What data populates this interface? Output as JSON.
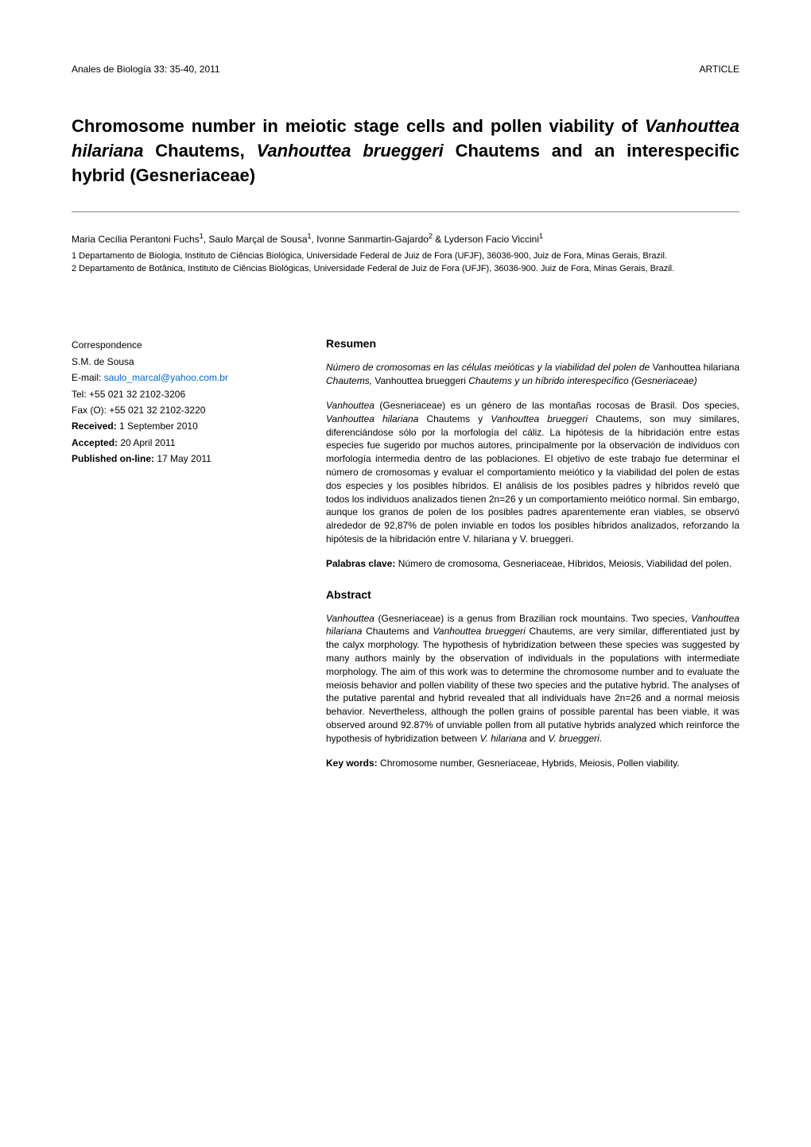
{
  "header": {
    "journal": "Anales de Biología 33: 35-40, 2011",
    "article_type": "ARTICLE"
  },
  "title": {
    "pre1": "Chromosome number in meiotic stage cells and pollen viability of ",
    "sp1": "Vanhouttea hilariana",
    "mid1": " Chautems, ",
    "sp2": "Vanhouttea brueggeri",
    "post": " Chautems and an interespecific hybrid (Gesneriaceae)"
  },
  "authors": {
    "a1": "Maria Cecília Perantoni Fuchs",
    "s1": "1",
    "a2": ", Saulo Marçal de Sousa",
    "s2": "1",
    "a3": ", Ivonne Sanmartin-Gajardo",
    "s3": "2",
    "a4": " & Lyderson Facio Viccini",
    "s4": "1"
  },
  "affiliations": {
    "af1": "1 Departamento de Biologia, Instituto de Ciências Biológica, Universidade Federal de Juiz de Fora (UFJF), 36036-900, Juiz de Fora, Minas Gerais, Brazil.",
    "af2": "2 Departamento de Botânica, Instituto de Ciências Biológicas, Universidade Federal de Juiz de Fora (UFJF), 36036-900. Juiz de Fora, Minas Gerais, Brazil."
  },
  "correspondence": {
    "heading": "Correspondence",
    "name": "S.M. de Sousa",
    "email_label": "E-mail: ",
    "email": "saulo_marcal@yahoo.com.br",
    "tel": "Tel: +55 021 32 2102-3206",
    "fax": "Fax (O): +55 021 32 2102-3220",
    "received_label": "Received:",
    "received": " 1 September 2010",
    "accepted_label": "Accepted:",
    "accepted": " 20 April 2011",
    "published_label": "Published on-line:",
    "published": " 17 May 2011"
  },
  "resumen": {
    "heading": "Resumen",
    "title_pre": "Número de cromosomas en las células meióticas y la viabilidad del polen de ",
    "title_sp1_roman": "Vanhouttea hilariana ",
    "title_mid1": "Chautems,",
    "title_sp2_roman": " Vanhouttea brueggeri ",
    "title_post": "Chautems y un híbrido interespecífico (Gesneriaceae)",
    "body_p1_it": "Vanhouttea",
    "body_p1_a": " (Gesneriaceae) es un género de las montañas rocosas de Brasil. Dos species, ",
    "body_p1_sp1": "Vanhouttea hilariana",
    "body_p1_b": " Chautems y ",
    "body_p1_sp2": "Vanhouttea brueggeri",
    "body_p1_c": " Chautems, son muy similares, diferenciándose sólo por la morfología del cáliz. La hipótesis de la hibridación entre estas especies fue sugerido por muchos autores, principalmente por la observación de individuos con morfología intermedia dentro de las poblaciones. El objetivo de este trabajo fue determinar el número de cromosomas y evaluar el comportamiento meiótico y la viabilidad del polen de estas dos especies y los posibles híbridos. El análisis de los posibles padres y híbridos reveló que todos los individuos analizados tienen 2n=26 y un comportamiento meiótico normal. Sin embargo, aunque los granos de polen de los posibles padres aparentemente eran viables, se observó alrededor de 92,87% de polen inviable en todos los posibles híbridos analizados, reforzando la hipótesis de la hibridación entre V. hilariana  y V. brueggeri.",
    "keywords_label": "Palabras clave:",
    "keywords": " Número de cromosoma, Gesneriaceae, Híbridos, Meiosis, Viabilidad del polen."
  },
  "abstract": {
    "heading": "Abstract",
    "body_sp0": "Vanhouttea",
    "body_a": " (Gesneriaceae) is a genus from Brazilian rock mountains. Two species, ",
    "body_sp1": "Vanhouttea hilariana",
    "body_b": " Chautems and ",
    "body_sp2": "Vanhouttea brueggeri",
    "body_c": " Chautems, are very similar, differentiated just by the calyx morphology. The hypothesis of hybridization between these species was suggested by many authors mainly by the observation of individuals in the populations with intermediate morphology. The aim of this work was to determine the chromosome number and to evaluate the meiosis behavior and pollen viability of these two species and the putative hybrid. The analyses of the putative parental and hybrid revealed that all individuals have 2n=26 and a normal meiosis behavior. Nevertheless, although the pollen grains of possible parental has been viable, it was observed around 92.87% of unviable pollen from all putative hybrids analyzed which reinforce the hypothesis of hybridization between ",
    "body_sp3": "V. hilariana",
    "body_d": " and ",
    "body_sp4": "V. brueggeri",
    "body_e": ".",
    "keywords_label": "Key words:",
    "keywords": " Chromosome number, Gesneriaceae, Hybrids, Meiosis, Pollen viability."
  },
  "colors": {
    "text": "#000000",
    "link": "#0066cc",
    "rule": "#888888",
    "background": "#ffffff"
  },
  "typography": {
    "body_font": "Arial, Helvetica, sans-serif",
    "title_fontsize_pt": 16,
    "heading_fontsize_pt": 11,
    "body_fontsize_pt": 9,
    "header_fontsize_pt": 9
  }
}
